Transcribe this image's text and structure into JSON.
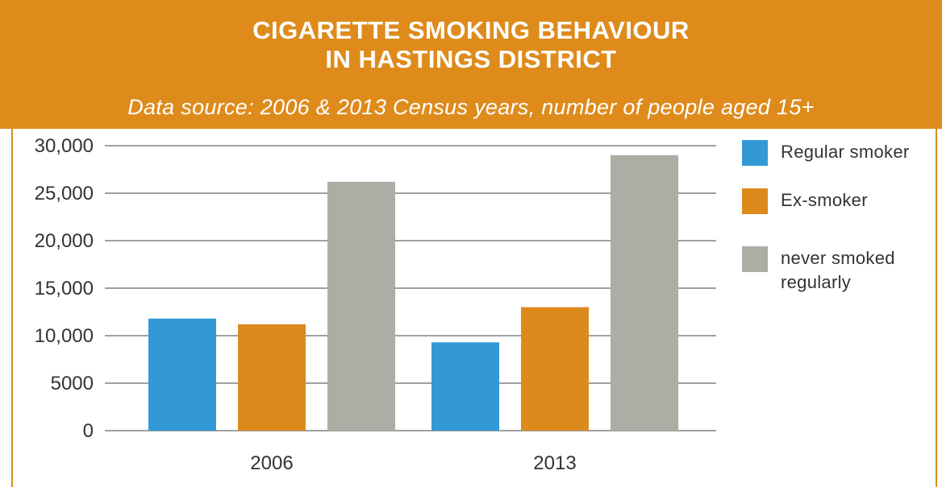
{
  "title_line1": "CIGARETTE SMOKING BEHAVIOUR",
  "title_line2": "IN HASTINGS DISTRICT",
  "subtitle": "Data source: 2006 & 2013 Census years, number of people aged 15+",
  "colors": {
    "banner": "#de8b1c",
    "grid": "#a0a0a0"
  },
  "chart_data": {
    "type": "bar",
    "categories": [
      "2006",
      "2013"
    ],
    "series": [
      {
        "name": "Regular smoker",
        "color": "#3399d6",
        "values": [
          11800,
          9300
        ]
      },
      {
        "name": "Ex-smoker",
        "color": "#dc8a1c",
        "values": [
          11200,
          13000
        ]
      },
      {
        "name": "never smoked regularly",
        "color": "#adada5",
        "values": [
          26200,
          29000
        ]
      }
    ],
    "ylim": [
      0,
      30000
    ],
    "yticks": [
      0,
      5000,
      10000,
      15000,
      20000,
      25000,
      30000
    ],
    "ytick_labels": [
      "0",
      "5000",
      "10,000",
      "15,000",
      "20,000",
      "25,000",
      "30,000"
    ],
    "grid": true,
    "legend_position": "right",
    "legend_labels": [
      [
        "Regular smoker"
      ],
      [
        "Ex-smoker"
      ],
      [
        "never smoked",
        "regularly"
      ]
    ]
  }
}
